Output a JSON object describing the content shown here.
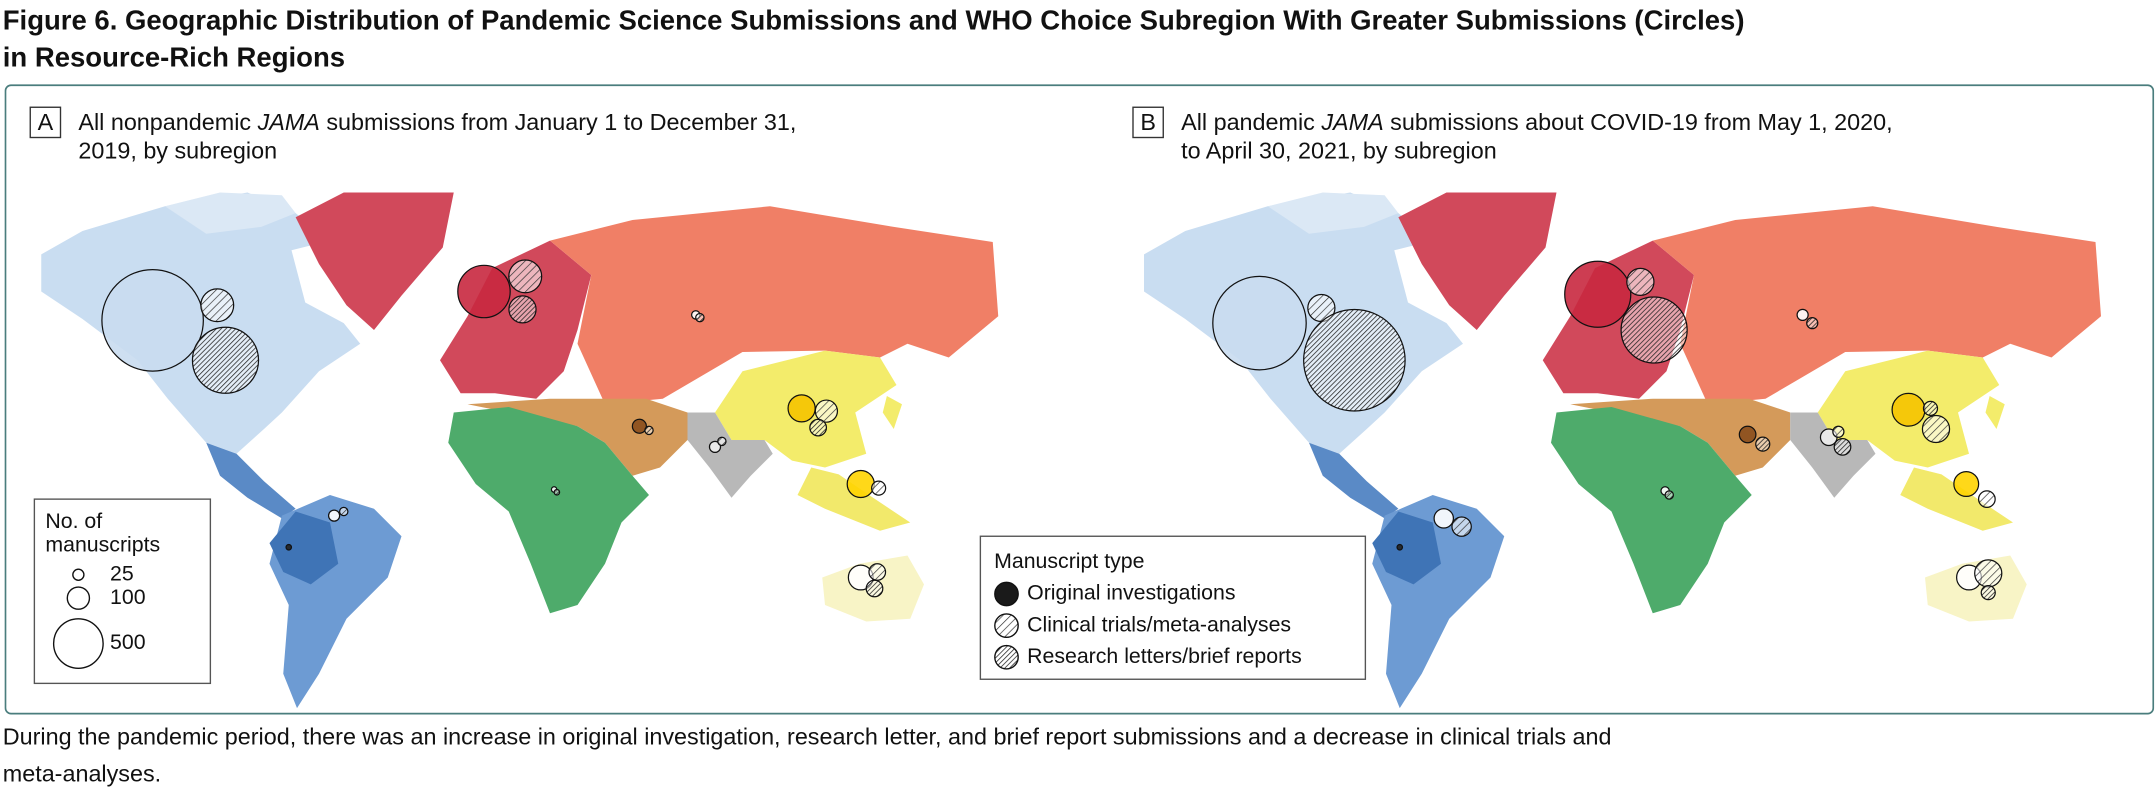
{
  "figure": {
    "title": [
      "Figure 6. Geographic Distribution of Pandemic Science Submissions and WHO Choice Subregion With Greater Submissions (Circles)",
      "in Resource-Rich Regions"
    ],
    "caption": [
      "During the pandemic period, there was an increase in original investigation, research letter, and brief report submissions and a decrease in clinical trials and",
      "meta-analyses."
    ]
  },
  "panels": [
    {
      "label": "A",
      "description": [
        [
          "All nonpandemic ",
          "JAMA",
          " submissions from January 1 to December 31,"
        ],
        [
          "2019, by subregion"
        ]
      ],
      "bubbles": [
        [
          2100,
          560,
          150,
          150,
          40,
          14,
          25,
          6,
          25,
          6,
          125
        ],
        [
          220,
          220,
          100,
          40,
          56,
          14,
          14
        ],
        [
          890,
          150,
          56,
          14,
          14,
          56,
          6
        ]
      ]
    },
    {
      "label": "B",
      "description": [
        [
          "All pandemic ",
          "JAMA",
          " submissions about COVID-19 from May 1, 2020,"
        ],
        [
          "to April 30, 2021, by subregion"
        ]
      ],
      "bubbles": [
        [
          1780,
          890,
          220,
          125,
          56,
          25,
          56,
          14,
          76,
          6,
          125
        ],
        [
          150,
          150,
          150,
          56,
          150,
          25,
          76
        ],
        [
          2100,
          890,
          40,
          25,
          40,
          40,
          14,
          56
        ]
      ]
    }
  ],
  "size_legend": {
    "title": [
      "No. of",
      "manuscripts"
    ],
    "sizes": [
      25,
      100,
      500
    ]
  },
  "type_legend": {
    "title": "Manuscript type",
    "types": [
      "Original investigations",
      "Clinical trials/meta-analyses",
      "Research letters/brief reports"
    ]
  }
}
